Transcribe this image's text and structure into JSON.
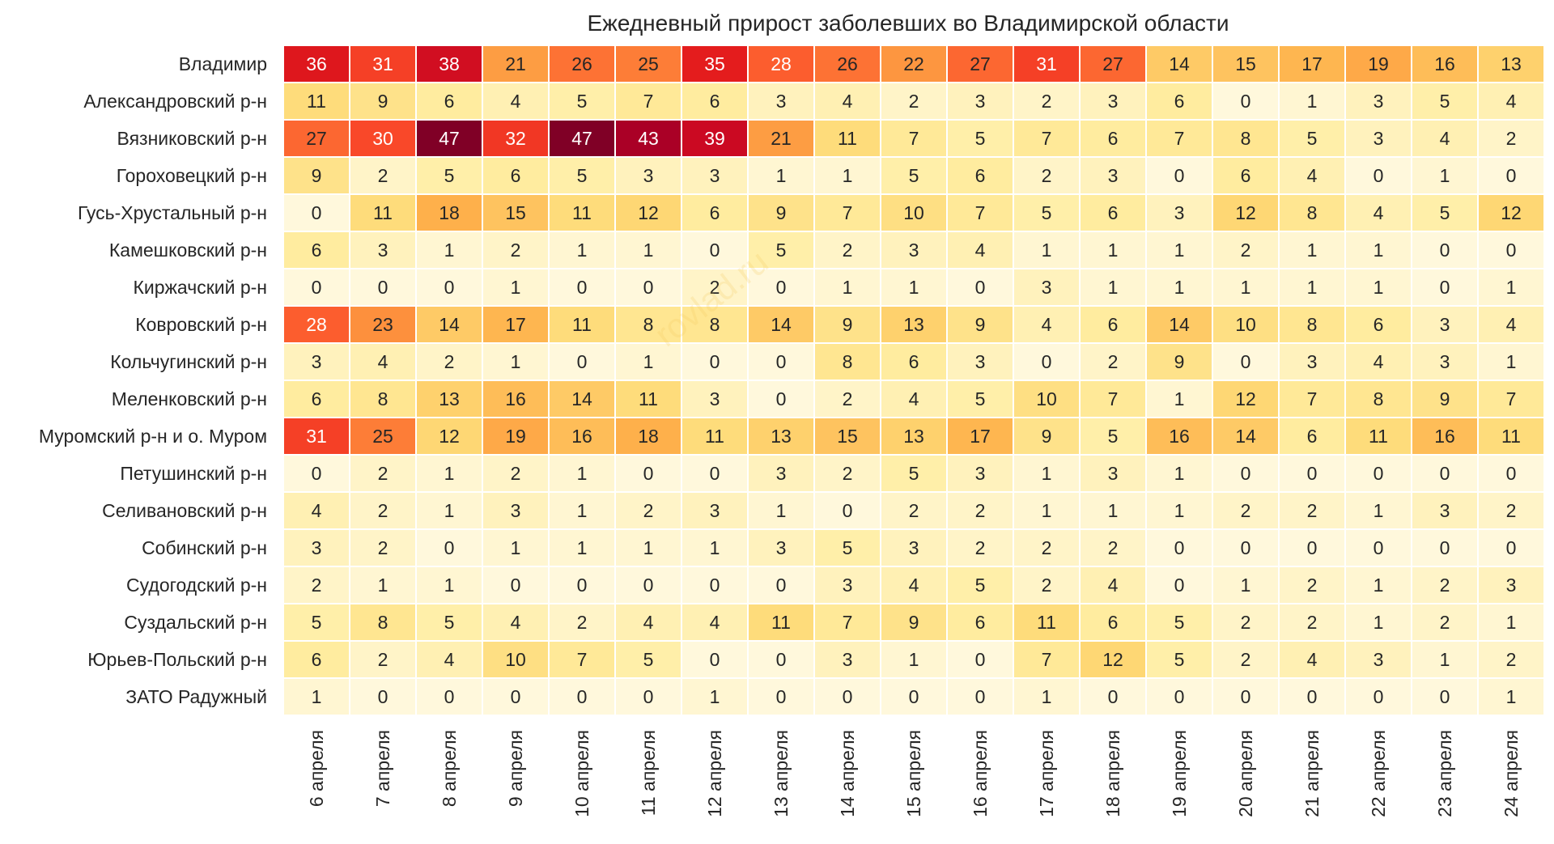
{
  "chart_data": {
    "type": "heatmap",
    "title": "Ежедневный прирост заболевших во Владимирской области",
    "x_categories": [
      "6 апреля",
      "7 апреля",
      "8 апреля",
      "9 апреля",
      "10 апреля",
      "11 апреля",
      "12 апреля",
      "13 апреля",
      "14 апреля",
      "15 апреля",
      "16 апреля",
      "17 апреля",
      "18 апреля",
      "19 апреля",
      "20 апреля",
      "21 апреля",
      "22 апреля",
      "23 апреля",
      "24 апреля"
    ],
    "y_categories": [
      "Владимир",
      "Александровский р-н",
      "Вязниковский р-н",
      "Гороховецкий р-н",
      "Гусь-Хрустальный р-н",
      "Камешковский р-н",
      "Киржачский р-н",
      "Ковровский р-н",
      "Кольчугинский р-н",
      "Меленковский р-н",
      "Муромский р-н и о. Муром",
      "Петушинский р-н",
      "Селивановский р-н",
      "Собинский р-н",
      "Судогодский р-н",
      "Суздальский р-н",
      "Юрьев-Польский р-н",
      "ЗАТО Радужный"
    ],
    "values": [
      [
        36,
        31,
        38,
        21,
        26,
        25,
        35,
        28,
        26,
        22,
        27,
        31,
        27,
        14,
        15,
        17,
        19,
        16,
        13
      ],
      [
        11,
        9,
        6,
        4,
        5,
        7,
        6,
        3,
        4,
        2,
        3,
        2,
        3,
        6,
        0,
        1,
        3,
        5,
        4
      ],
      [
        27,
        30,
        47,
        32,
        47,
        43,
        39,
        21,
        11,
        7,
        5,
        7,
        6,
        7,
        8,
        5,
        3,
        4,
        2
      ],
      [
        9,
        2,
        5,
        6,
        5,
        3,
        3,
        1,
        1,
        5,
        6,
        2,
        3,
        0,
        6,
        4,
        0,
        1,
        0
      ],
      [
        0,
        11,
        18,
        15,
        11,
        12,
        6,
        9,
        7,
        10,
        7,
        5,
        6,
        3,
        12,
        8,
        4,
        5,
        12
      ],
      [
        6,
        3,
        1,
        2,
        1,
        1,
        0,
        5,
        2,
        3,
        4,
        1,
        1,
        1,
        2,
        1,
        1,
        0,
        0
      ],
      [
        0,
        0,
        0,
        1,
        0,
        0,
        2,
        0,
        1,
        1,
        0,
        3,
        1,
        1,
        1,
        1,
        1,
        0,
        1
      ],
      [
        28,
        23,
        14,
        17,
        11,
        8,
        8,
        14,
        9,
        13,
        9,
        4,
        6,
        14,
        10,
        8,
        6,
        3,
        4
      ],
      [
        3,
        4,
        2,
        1,
        0,
        1,
        0,
        0,
        8,
        6,
        3,
        0,
        2,
        9,
        0,
        3,
        4,
        3,
        1
      ],
      [
        6,
        8,
        13,
        16,
        14,
        11,
        3,
        0,
        2,
        4,
        5,
        10,
        7,
        1,
        12,
        7,
        8,
        9,
        7
      ],
      [
        31,
        25,
        12,
        19,
        16,
        18,
        11,
        13,
        15,
        13,
        17,
        9,
        5,
        16,
        14,
        6,
        11,
        16,
        11
      ],
      [
        0,
        2,
        1,
        2,
        1,
        0,
        0,
        3,
        2,
        5,
        3,
        1,
        3,
        1,
        0,
        0,
        0,
        0,
        0
      ],
      [
        4,
        2,
        1,
        3,
        1,
        2,
        3,
        1,
        0,
        2,
        2,
        1,
        1,
        1,
        2,
        2,
        1,
        3,
        2
      ],
      [
        3,
        2,
        0,
        1,
        1,
        1,
        1,
        3,
        5,
        3,
        2,
        2,
        2,
        0,
        0,
        0,
        0,
        0,
        0
      ],
      [
        2,
        1,
        1,
        0,
        0,
        0,
        0,
        0,
        3,
        4,
        5,
        2,
        4,
        0,
        1,
        2,
        1,
        2,
        3
      ],
      [
        5,
        8,
        5,
        4,
        2,
        4,
        4,
        11,
        7,
        9,
        6,
        11,
        6,
        5,
        2,
        2,
        1,
        2,
        1
      ],
      [
        6,
        2,
        4,
        10,
        7,
        5,
        0,
        0,
        3,
        1,
        0,
        7,
        12,
        5,
        2,
        4,
        3,
        1,
        2
      ],
      [
        1,
        0,
        0,
        0,
        0,
        0,
        1,
        0,
        0,
        0,
        0,
        1,
        0,
        0,
        0,
        0,
        0,
        0,
        1
      ]
    ],
    "vmin": 0,
    "vmax": 47,
    "colormap": "YlOrRd",
    "annotated": true,
    "colorbar": false,
    "xlabel": "",
    "ylabel": ""
  },
  "watermark": "rovlad.ru"
}
